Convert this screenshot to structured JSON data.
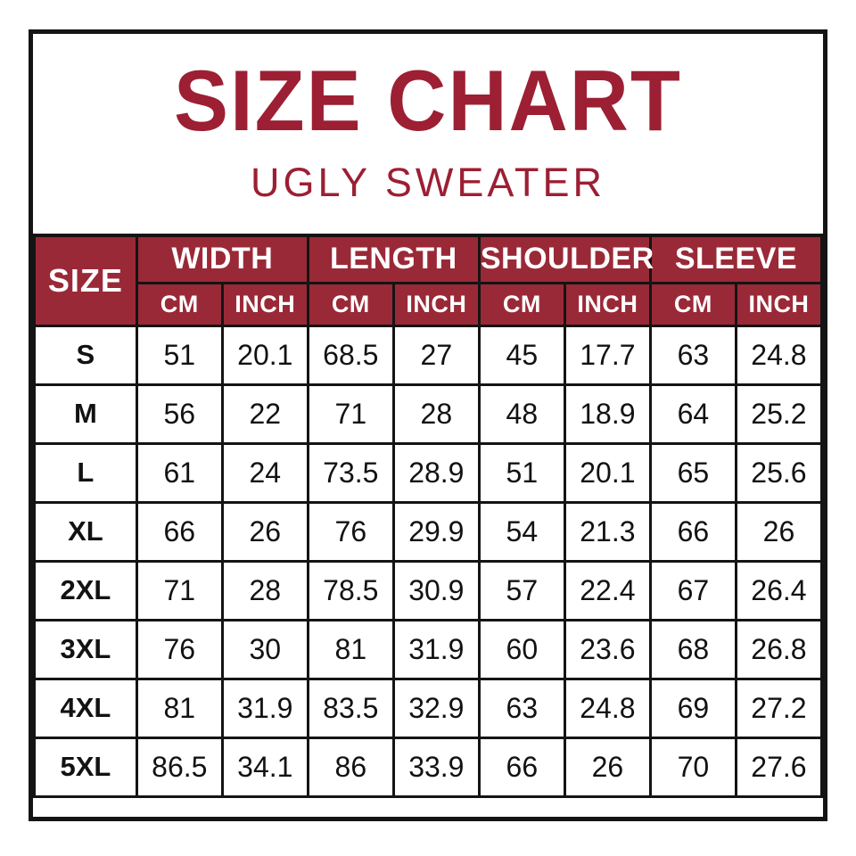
{
  "colors": {
    "accent_red": "#9C1F33",
    "header_bg": "#9A2937",
    "border": "#141414",
    "header_text": "#FFFFFF",
    "body_text": "#121212"
  },
  "header": {
    "title": "SIZE CHART",
    "subtitle": "UGLY SWEATER"
  },
  "table": {
    "size_column_header": "SIZE",
    "groups": [
      {
        "label": "WIDTH"
      },
      {
        "label": "LENGTH"
      },
      {
        "label": "SHOULDER"
      },
      {
        "label": "SLEEVE"
      }
    ],
    "unit_row": [
      "CM",
      "INCH",
      "CM",
      "INCH",
      "CM",
      "INCH",
      "CM",
      "INCH"
    ],
    "rows": [
      {
        "size": "S",
        "values": [
          "51",
          "20.1",
          "68.5",
          "27",
          "45",
          "17.7",
          "63",
          "24.8"
        ]
      },
      {
        "size": "M",
        "values": [
          "56",
          "22",
          "71",
          "28",
          "48",
          "18.9",
          "64",
          "25.2"
        ]
      },
      {
        "size": "L",
        "values": [
          "61",
          "24",
          "73.5",
          "28.9",
          "51",
          "20.1",
          "65",
          "25.6"
        ]
      },
      {
        "size": "XL",
        "values": [
          "66",
          "26",
          "76",
          "29.9",
          "54",
          "21.3",
          "66",
          "26"
        ]
      },
      {
        "size": "2XL",
        "values": [
          "71",
          "28",
          "78.5",
          "30.9",
          "57",
          "22.4",
          "67",
          "26.4"
        ]
      },
      {
        "size": "3XL",
        "values": [
          "76",
          "30",
          "81",
          "31.9",
          "60",
          "23.6",
          "68",
          "26.8"
        ]
      },
      {
        "size": "4XL",
        "values": [
          "81",
          "31.9",
          "83.5",
          "32.9",
          "63",
          "24.8",
          "69",
          "27.2"
        ]
      },
      {
        "size": "5XL",
        "values": [
          "86.5",
          "34.1",
          "86",
          "33.9",
          "66",
          "26",
          "70",
          "27.6"
        ]
      }
    ]
  },
  "chart_data": {
    "type": "table",
    "title": "SIZE CHART",
    "subtitle": "UGLY SWEATER",
    "columns": [
      "SIZE",
      "WIDTH CM",
      "WIDTH INCH",
      "LENGTH CM",
      "LENGTH INCH",
      "SHOULDER CM",
      "SHOULDER INCH",
      "SLEEVE CM",
      "SLEEVE INCH"
    ],
    "rows": [
      [
        "S",
        51,
        20.1,
        68.5,
        27,
        45,
        17.7,
        63,
        24.8
      ],
      [
        "M",
        56,
        22,
        71,
        28,
        48,
        18.9,
        64,
        25.2
      ],
      [
        "L",
        61,
        24,
        73.5,
        28.9,
        51,
        20.1,
        65,
        25.6
      ],
      [
        "XL",
        66,
        26,
        76,
        29.9,
        54,
        21.3,
        66,
        26
      ],
      [
        "2XL",
        71,
        28,
        78.5,
        30.9,
        57,
        22.4,
        67,
        26.4
      ],
      [
        "3XL",
        76,
        30,
        81,
        31.9,
        60,
        23.6,
        68,
        26.8
      ],
      [
        "4XL",
        81,
        31.9,
        83.5,
        32.9,
        63,
        24.8,
        69,
        27.2
      ],
      [
        "5XL",
        86.5,
        34.1,
        86,
        33.9,
        66,
        26,
        70,
        27.6
      ]
    ]
  }
}
